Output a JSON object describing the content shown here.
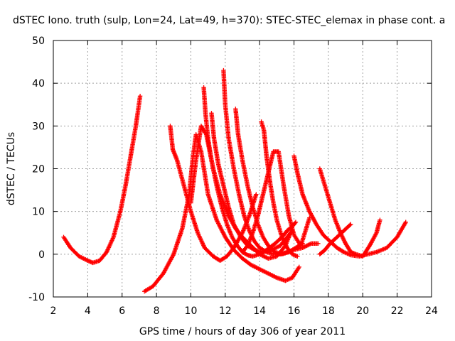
{
  "chart_data": {
    "type": "scatter",
    "title": "dSTEC Iono. truth (sulp, Lon=24, Lat=49, h=370): STEC-STEC_elemax in phase cont. a",
    "xlabel": "GPS time / hours of day 306 of year 2011",
    "ylabel": "dSTEC  / TECUs",
    "xlim": [
      2,
      24
    ],
    "ylim": [
      -10,
      50
    ],
    "x_ticks": [
      "2",
      "4",
      "6",
      "8",
      "10",
      "12",
      "14",
      "16",
      "18",
      "20",
      "22",
      "24"
    ],
    "y_ticks": [
      "-10",
      "0",
      "10",
      "20",
      "30",
      "40",
      "50"
    ],
    "grid": true,
    "marker": "+",
    "color": "#ff0000",
    "series": [
      {
        "x": [
          2.6,
          3.0,
          3.5,
          4.0,
          4.3,
          4.7,
          5.1,
          5.5,
          5.9,
          6.2,
          6.5,
          6.8,
          7.05
        ],
        "values": [
          4,
          1.5,
          -0.5,
          -1.5,
          -2,
          -1.5,
          0.5,
          4,
          10,
          16,
          23,
          30,
          37
        ]
      },
      {
        "x": [
          7.3,
          7.8,
          8.4,
          9.0,
          9.5,
          9.9,
          10.1,
          10.3,
          10.6,
          11.0,
          11.5,
          12.0,
          12.5,
          13.0,
          13.5,
          14.0,
          14.5,
          15.0,
          15.5,
          15.9,
          16.3
        ],
        "values": [
          -8.7,
          -7.5,
          -4.5,
          0,
          6,
          14,
          22,
          28,
          24,
          14,
          8,
          4,
          1,
          -1,
          -2.5,
          -3.5,
          -4.5,
          -5.5,
          -6.2,
          -5.5,
          -3
        ]
      },
      {
        "x": [
          8.8,
          8.95,
          9.2,
          9.6,
          10.0,
          10.4,
          10.8,
          11.3,
          11.7,
          12.1,
          12.5,
          13.0,
          13.4,
          13.8
        ],
        "values": [
          30,
          24.5,
          22,
          16,
          10,
          5,
          1.5,
          -0.5,
          -1.5,
          -0.5,
          1.5,
          5,
          9,
          14
        ]
      },
      {
        "x": [
          10.0,
          10.3,
          10.6,
          10.9,
          11.3,
          11.7,
          12.2,
          12.6,
          13.0,
          13.5,
          14.0,
          14.5,
          15.0,
          15.5,
          15.8
        ],
        "values": [
          12,
          22,
          30,
          28,
          20,
          14,
          9,
          6,
          4,
          2,
          0,
          -1,
          -0.5,
          2,
          5
        ]
      },
      {
        "x": [
          10.75,
          10.85,
          11.0,
          11.2,
          11.5,
          11.8,
          12.1,
          12.4,
          12.7,
          13.0,
          13.3,
          13.6,
          14.0,
          14.4,
          14.9,
          15.3,
          15.6,
          15.9,
          16.1
        ],
        "values": [
          39,
          33,
          27,
          22,
          16,
          11,
          7,
          4,
          2,
          0.5,
          -0.2,
          -0.5,
          0,
          1,
          2.5,
          4,
          5.5,
          6.5,
          7.5
        ]
      },
      {
        "x": [
          11.2,
          11.35,
          11.6,
          11.9,
          12.2,
          12.5,
          12.9,
          13.3,
          13.7,
          14.2,
          14.7,
          15.2,
          15.6,
          15.9
        ],
        "values": [
          33,
          27,
          21,
          16,
          11,
          7,
          4,
          2,
          1,
          0.5,
          1,
          2,
          4,
          5.5
        ]
      },
      {
        "x": [
          11.9,
          12.0,
          12.2,
          12.5,
          12.8,
          13.1,
          13.4,
          13.7,
          14.0,
          14.4,
          14.8,
          15.2,
          15.6,
          16.0,
          16.5,
          17.0,
          17.4
        ],
        "values": [
          43,
          35,
          27,
          20,
          14,
          9,
          5.5,
          3,
          1.5,
          0.5,
          0,
          0,
          0.5,
          1,
          1.5,
          2.5,
          2.5
        ]
      },
      {
        "x": [
          12.6,
          12.75,
          13.0,
          13.3,
          13.6,
          13.9,
          14.2,
          14.5,
          14.9,
          15.3,
          15.7,
          16.1,
          16.5
        ],
        "values": [
          34,
          28,
          22,
          16,
          11,
          7,
          4,
          2,
          0.5,
          0,
          0.5,
          1.5,
          2.5
        ]
      },
      {
        "x": [
          13.0,
          13.3,
          13.6,
          13.9,
          14.2,
          14.5,
          14.8,
          15.1,
          15.4,
          15.7,
          16.0,
          16.4,
          16.9
        ],
        "values": [
          0.5,
          2,
          5,
          9,
          14,
          19,
          24,
          24,
          16,
          9,
          4.5,
          2,
          8.5
        ]
      },
      {
        "x": [
          14.1,
          14.25,
          14.4,
          14.6,
          14.8,
          15.0,
          15.3,
          15.6,
          15.9,
          16.2
        ],
        "values": [
          31,
          29,
          23,
          17,
          12,
          8,
          4,
          1.5,
          0,
          -0.5
        ]
      },
      {
        "x": [
          16.0,
          16.2,
          16.5,
          16.9,
          17.3,
          17.7,
          18.1,
          18.5,
          18.9,
          19.3,
          19.8,
          20.3,
          20.8,
          21.4,
          22.0,
          22.5
        ],
        "values": [
          23,
          19,
          14,
          10,
          7,
          4.5,
          3,
          1.5,
          0.5,
          -0.2,
          -0.5,
          0,
          0.5,
          1.5,
          4,
          7.5
        ]
      },
      {
        "x": [
          17.5,
          17.8,
          18.1,
          18.4,
          18.7,
          19.0,
          19.3,
          19.6,
          20.0,
          20.4,
          20.8,
          21.0
        ],
        "values": [
          20,
          16,
          12,
          8,
          5,
          2.5,
          0.5,
          0,
          -0.5,
          2,
          5,
          8
        ]
      },
      {
        "x": [
          17.5,
          17.8,
          18.1,
          18.5,
          18.9,
          19.3
        ],
        "values": [
          0,
          1,
          2.5,
          4,
          5.5,
          7
        ]
      }
    ]
  }
}
